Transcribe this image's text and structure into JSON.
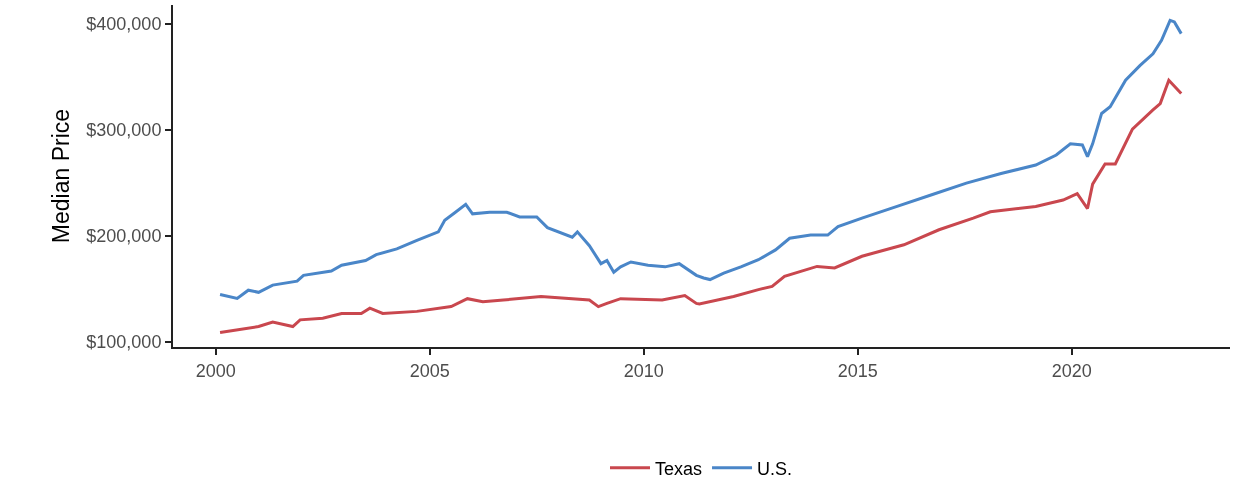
{
  "chart_data": {
    "type": "line",
    "ylabel": "Median Price",
    "xlim": [
      1999,
      2023.7
    ],
    "xticks": [
      2000,
      2005,
      2010,
      2015,
      2020
    ],
    "ylim": [
      95400,
      418000
    ],
    "yticks": [
      {
        "value": 100000,
        "label": "$100,000"
      },
      {
        "value": 200000,
        "label": "$200,000"
      },
      {
        "value": 300000,
        "label": "$300,000"
      },
      {
        "value": 400000,
        "label": "$400,000"
      }
    ],
    "grid": false,
    "legend": "bottom",
    "marker": "none",
    "line_style": "solid",
    "series": [
      {
        "name": "Texas",
        "color": "#c9474e",
        "x": [
          2000.1,
          2001.0,
          2001.33,
          2001.8,
          2001.97,
          2002.5,
          2002.94,
          2003.4,
          2003.6,
          2003.9,
          2004.7,
          2005.5,
          2005.88,
          2006.24,
          2006.72,
          2007.6,
          2008.73,
          2008.94,
          2009.14,
          2009.46,
          2010.43,
          2010.96,
          2011.23,
          2011.3,
          2012.1,
          2012.68,
          2013.0,
          2013.29,
          2014.05,
          2014.46,
          2015.1,
          2016.08,
          2016.9,
          2017.7,
          2018.1,
          2019.16,
          2019.8,
          2020.13,
          2020.37,
          2020.49,
          2020.78,
          2021.02,
          2021.42,
          2021.9,
          2022.07,
          2022.27,
          2022.56
        ],
        "values": [
          109000,
          114700,
          119000,
          114700,
          121000,
          122500,
          127000,
          127000,
          132000,
          127000,
          129000,
          133500,
          141000,
          138000,
          139700,
          143000,
          139700,
          133500,
          136500,
          141000,
          139700,
          144000,
          136500,
          136000,
          143000,
          149500,
          152600,
          162000,
          171400,
          170000,
          181000,
          191800,
          206000,
          217000,
          223000,
          228000,
          234000,
          240000,
          226000,
          249000,
          268000,
          268000,
          301000,
          319000,
          325000,
          347000,
          334500
        ]
      },
      {
        "name": "U.S.",
        "color": "#4a86c8",
        "x": [
          2000.1,
          2000.5,
          2000.76,
          2001.0,
          2001.33,
          2001.9,
          2002.05,
          2002.7,
          2002.94,
          2003.5,
          2003.75,
          2004.23,
          2004.7,
          2005.2,
          2005.35,
          2005.6,
          2005.84,
          2006.0,
          2006.4,
          2006.8,
          2007.1,
          2007.5,
          2007.75,
          2008.33,
          2008.45,
          2008.73,
          2009.0,
          2009.14,
          2009.3,
          2009.46,
          2009.7,
          2010.1,
          2010.5,
          2010.83,
          2011.23,
          2011.4,
          2011.55,
          2011.87,
          2012.27,
          2012.68,
          2013.08,
          2013.41,
          2013.9,
          2014.3,
          2014.54,
          2015.1,
          2015.92,
          2016.73,
          2017.54,
          2018.35,
          2019.16,
          2019.64,
          2019.97,
          2020.25,
          2020.37,
          2020.49,
          2020.7,
          2020.9,
          2021.26,
          2021.6,
          2021.9,
          2022.1,
          2022.3,
          2022.4,
          2022.56
        ],
        "values": [
          145000,
          141250,
          149000,
          147000,
          153750,
          157500,
          163000,
          167000,
          172500,
          177000,
          182500,
          188000,
          196000,
          204000,
          215000,
          222500,
          230000,
          221000,
          222500,
          222500,
          218000,
          218000,
          208000,
          199000,
          204000,
          191000,
          174000,
          177000,
          166000,
          171000,
          175600,
          172500,
          171000,
          174000,
          163000,
          160500,
          159000,
          165000,
          171000,
          177700,
          187000,
          198000,
          201000,
          201000,
          209000,
          217000,
          228000,
          239000,
          250000,
          259000,
          267000,
          276500,
          287000,
          286000,
          275000,
          287000,
          315700,
          322000,
          347000,
          361000,
          372000,
          384700,
          403500,
          402000,
          391000
        ]
      }
    ]
  }
}
